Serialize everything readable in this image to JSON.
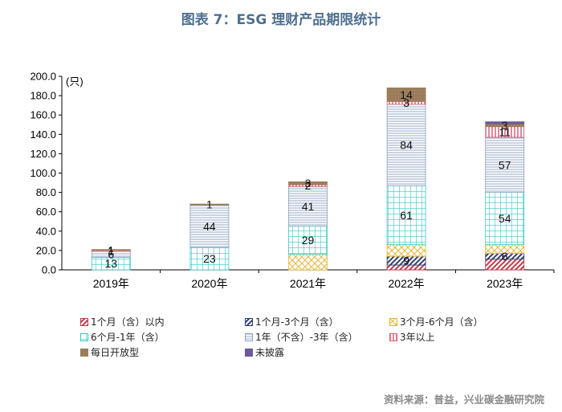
{
  "title": "图表 7：ESG 理财产品期限统计",
  "source": "资料来源：普益，兴业碳金融研究院",
  "chart_data": {
    "type": "bar",
    "stacked": true,
    "unit_label": "(只)",
    "ylim": [
      0,
      200
    ],
    "yticks": [
      "0.0",
      "20.0",
      "40.0",
      "60.0",
      "80.0",
      "100.0",
      "120.0",
      "140.0",
      "160.0",
      "180.0",
      "200.0"
    ],
    "categories": [
      "2019年",
      "2020年",
      "2021年",
      "2022年",
      "2023年"
    ],
    "series": [
      {
        "name": "1个月（含）以内",
        "color": "#c0394b",
        "pattern": "p-red",
        "values": [
          0,
          0,
          0,
          5,
          11
        ],
        "labels": [
          "",
          "",
          "",
          "",
          ""
        ]
      },
      {
        "name": "1个月-3个月（含）",
        "color": "#2f3f6f",
        "pattern": "p-navy",
        "values": [
          0,
          0,
          0,
          9,
          6
        ],
        "labels": [
          "",
          "",
          "",
          "9",
          "6"
        ]
      },
      {
        "name": "3个月-6个月（含）",
        "color": "#e8b53a",
        "pattern": "p-yellow",
        "values": [
          0,
          0,
          16,
          12,
          9
        ],
        "labels": [
          "",
          "",
          "",
          "",
          ""
        ]
      },
      {
        "name": "6个月-1年（含）",
        "color": "#35c8c4",
        "pattern": "p-teal",
        "values": [
          13,
          23,
          29,
          61,
          54
        ],
        "labels": [
          "13",
          "23",
          "29",
          "61",
          "54"
        ]
      },
      {
        "name": "1年（不含）-3年（含）",
        "color": "#8aa0c0",
        "pattern": "p-lines",
        "values": [
          6,
          44,
          41,
          84,
          57
        ],
        "labels": [
          "6",
          "44",
          "41",
          "84",
          "57"
        ]
      },
      {
        "name": "3年以上",
        "color": "#d9607a",
        "pattern": "p-pink",
        "values": [
          1,
          0,
          2,
          3,
          11
        ],
        "labels": [
          "1",
          "",
          "2",
          "3",
          "11"
        ]
      },
      {
        "name": "每日开放型",
        "color": "#9a7b5a",
        "pattern": "p-brown",
        "values": [
          1,
          1,
          3,
          14,
          3
        ],
        "labels": [
          "1",
          "1",
          "3",
          "14",
          "3"
        ]
      },
      {
        "name": "未披露",
        "color": "#6a5a9a",
        "pattern": "p-purple",
        "values": [
          0,
          0,
          0,
          0,
          2
        ],
        "labels": [
          "",
          "",
          "",
          "",
          ""
        ]
      }
    ]
  }
}
